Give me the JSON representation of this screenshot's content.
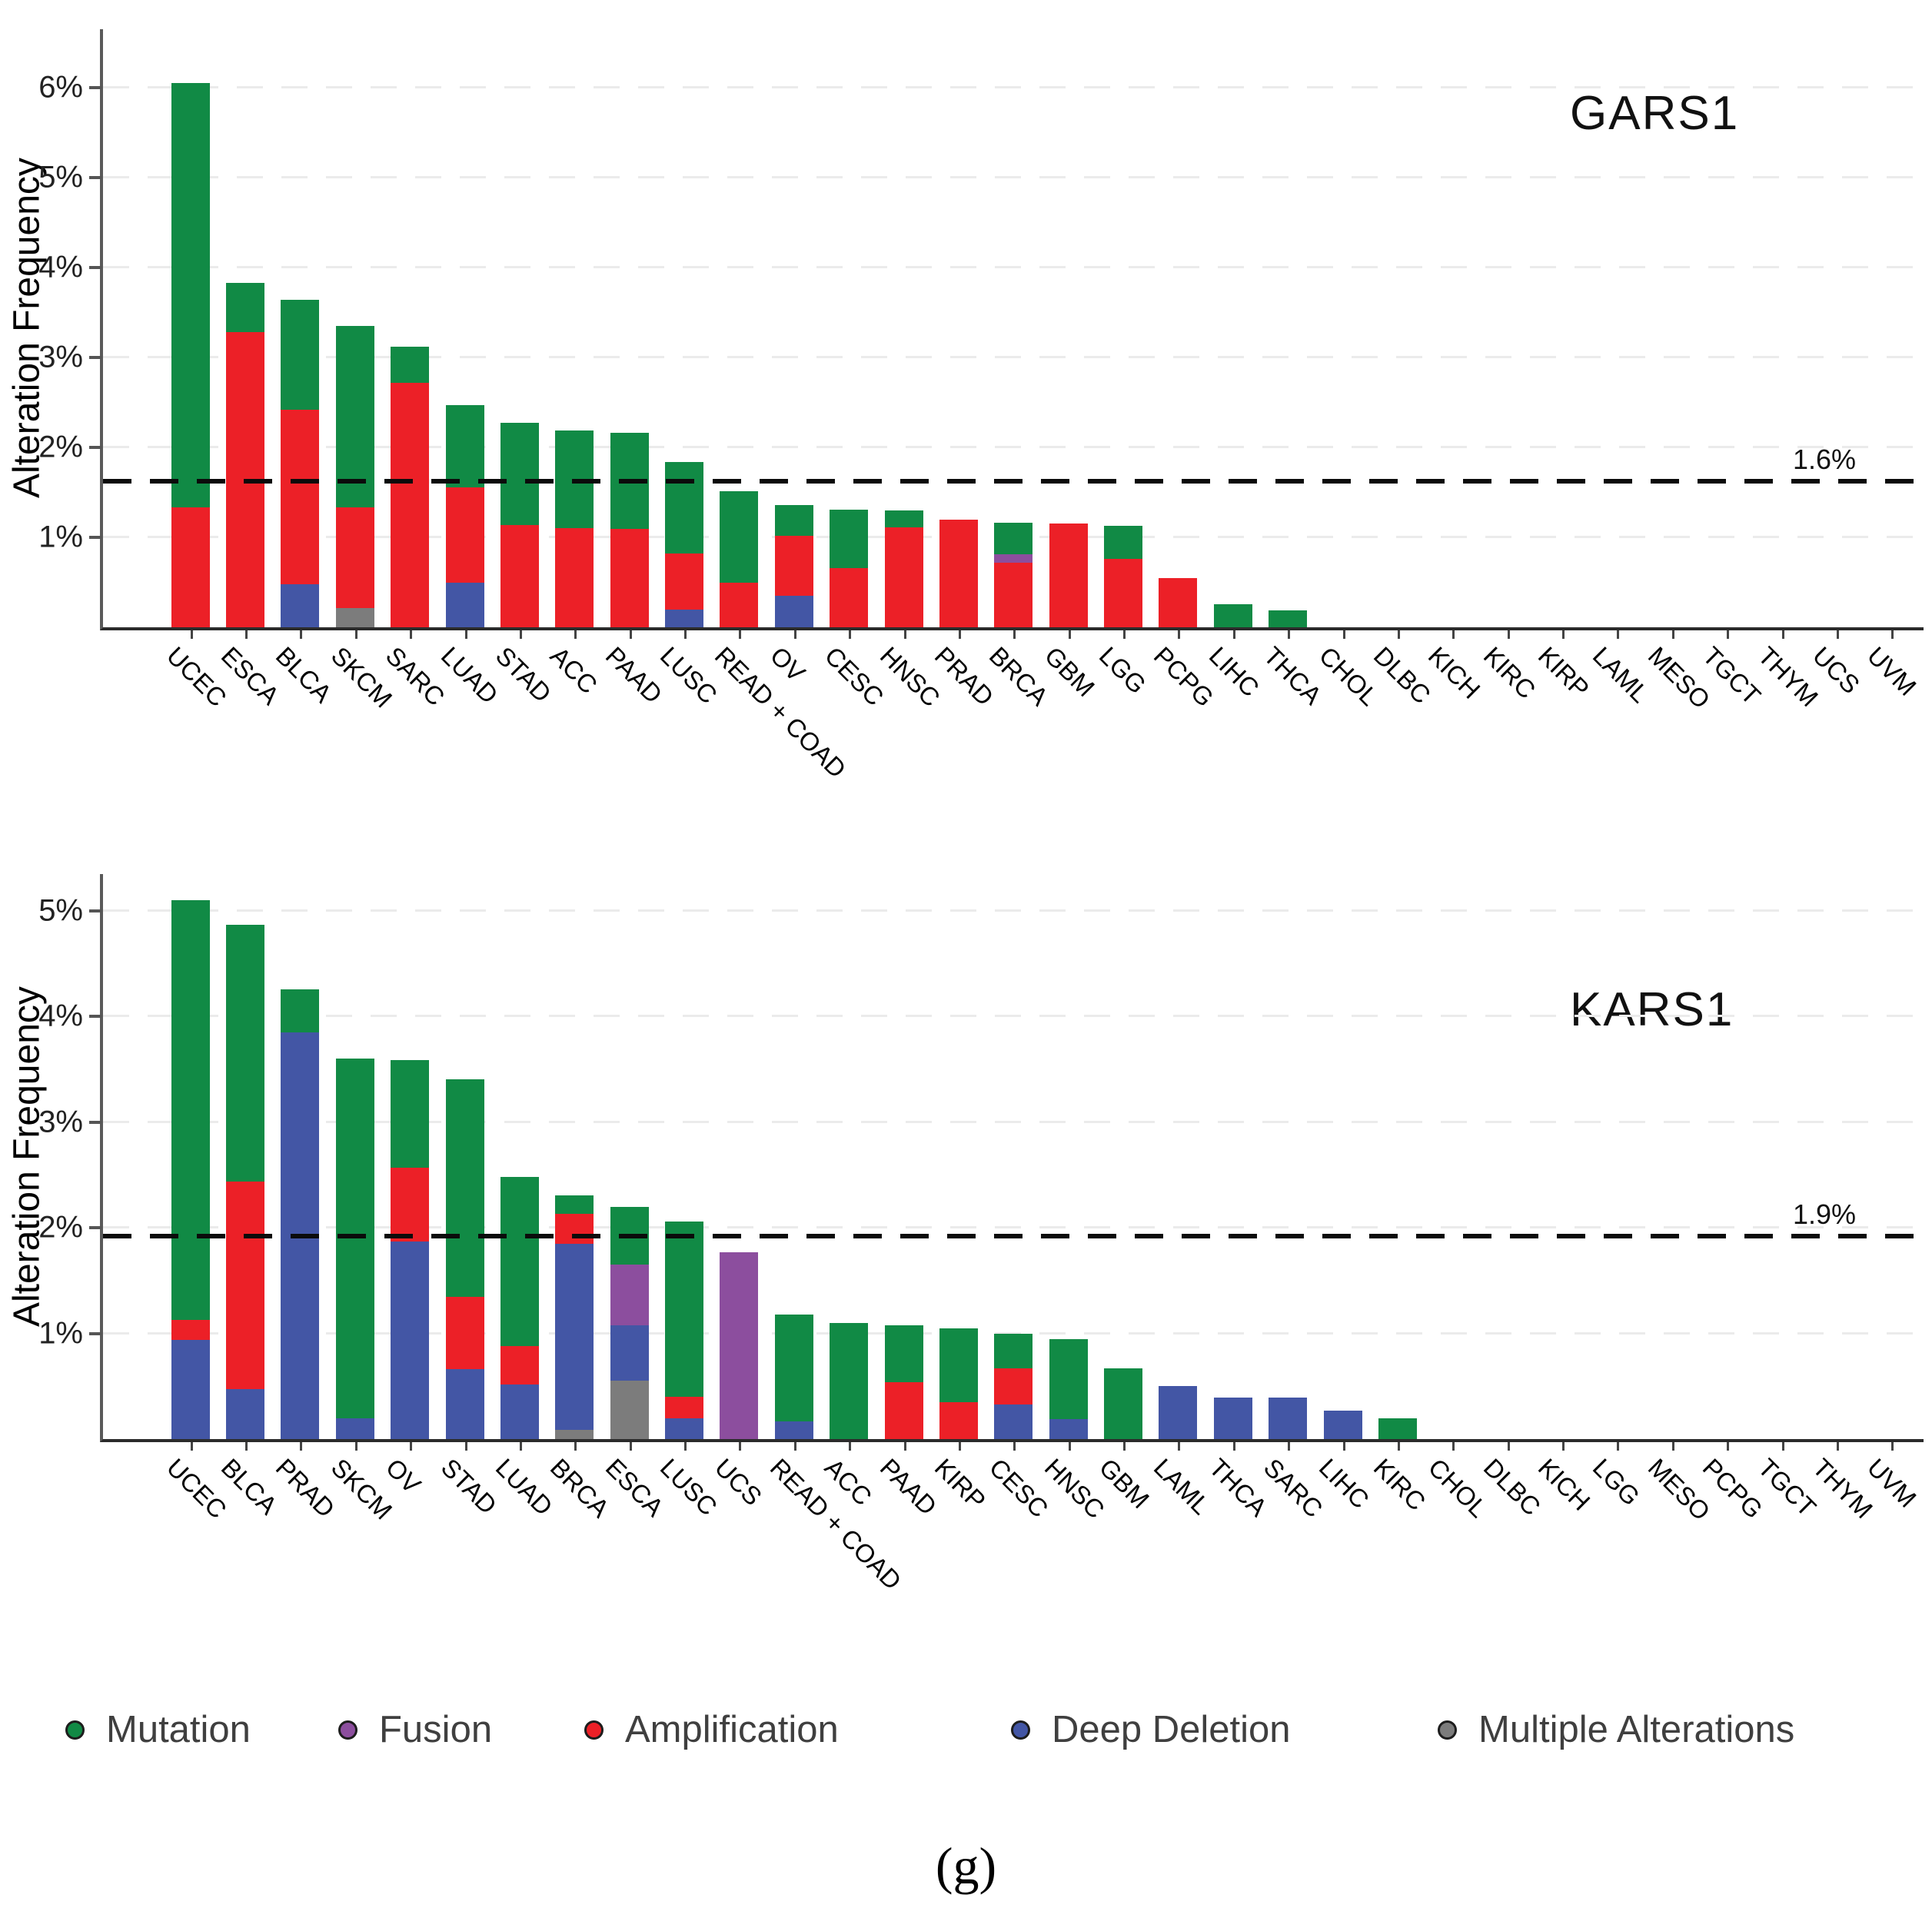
{
  "caption": "(g)",
  "legend": {
    "items": [
      {
        "label": "Mutation",
        "color": "#118A45"
      },
      {
        "label": "Fusion",
        "color": "#8C4E9E"
      },
      {
        "label": "Amplification",
        "color": "#EC2027"
      },
      {
        "label": "Deep Deletion",
        "color": "#4356A5"
      },
      {
        "label": "Multiple Alterations",
        "color": "#7C7C7C"
      }
    ]
  },
  "chart_data": [
    {
      "type": "bar",
      "stacked": true,
      "title": "GARS1",
      "ylabel": "Alteration Frequency",
      "xlabel": "",
      "grid": true,
      "ylim": [
        0,
        6.65
      ],
      "ytick_format": "percent",
      "threshold_value": 1.6,
      "threshold_label": "1.6%",
      "categories": [
        "UCEC",
        "ESCA",
        "BLCA",
        "SKCM",
        "SARC",
        "LUAD",
        "STAD",
        "ACC",
        "PAAD",
        "LUSC",
        "READ + COAD",
        "OV",
        "CESC",
        "HNSC",
        "PRAD",
        "BRCA",
        "GBM",
        "LGG",
        "PCPG",
        "LIHC",
        "THCA",
        "CHOL",
        "DLBC",
        "KICH",
        "KIRC",
        "KIRP",
        "LAML",
        "MESO",
        "TGCT",
        "THYM",
        "UCS",
        "UVM"
      ],
      "series": [
        {
          "name": "Mutation",
          "values": [
            4.72,
            0.55,
            1.22,
            2.02,
            0.4,
            0.91,
            1.13,
            1.09,
            1.07,
            1.02,
            1.01,
            0.34,
            0.65,
            0.19,
            0,
            0.35,
            0,
            0.37,
            0,
            0.26,
            0.19,
            0,
            0,
            0,
            0,
            0,
            0,
            0,
            0,
            0,
            0,
            0
          ]
        },
        {
          "name": "Fusion",
          "values": [
            0,
            0,
            0,
            0,
            0,
            0,
            0,
            0,
            0,
            0,
            0,
            0,
            0,
            0,
            0,
            0.09,
            0,
            0,
            0,
            0,
            0,
            0,
            0,
            0,
            0,
            0,
            0,
            0,
            0,
            0,
            0,
            0
          ]
        },
        {
          "name": "Amplification",
          "values": [
            1.33,
            3.28,
            1.94,
            1.12,
            2.72,
            1.06,
            1.14,
            1.1,
            1.09,
            0.62,
            0.5,
            0.67,
            0.66,
            1.11,
            1.2,
            0.72,
            1.15,
            0.76,
            0.55,
            0,
            0,
            0,
            0,
            0,
            0,
            0,
            0,
            0,
            0,
            0,
            0,
            0
          ]
        },
        {
          "name": "Deep Deletion",
          "values": [
            0,
            0,
            0.48,
            0,
            0,
            0.5,
            0,
            0,
            0,
            0.2,
            0,
            0.35,
            0,
            0,
            0,
            0,
            0,
            0,
            0,
            0,
            0,
            0,
            0,
            0,
            0,
            0,
            0,
            0,
            0,
            0,
            0,
            0
          ]
        },
        {
          "name": "Multiple Alterations",
          "values": [
            0,
            0,
            0,
            0.21,
            0,
            0,
            0,
            0,
            0,
            0,
            0,
            0,
            0,
            0,
            0,
            0,
            0,
            0,
            0,
            0,
            0,
            0,
            0,
            0,
            0,
            0,
            0,
            0,
            0,
            0,
            0,
            0
          ]
        }
      ]
    },
    {
      "type": "bar",
      "stacked": true,
      "title": "KARS1",
      "ylabel": "Alteration Frequency",
      "xlabel": "",
      "grid": true,
      "ylim": [
        0,
        5.35
      ],
      "ytick_format": "percent",
      "threshold_value": 1.9,
      "threshold_label": "1.9%",
      "categories": [
        "UCEC",
        "BLCA",
        "PRAD",
        "SKCM",
        "OV",
        "STAD",
        "LUAD",
        "BRCA",
        "ESCA",
        "LUSC",
        "UCS",
        "READ + COAD",
        "ACC",
        "PAAD",
        "KIRP",
        "CESC",
        "HNSC",
        "GBM",
        "LAML",
        "THCA",
        "SARC",
        "LIHC",
        "KIRC",
        "CHOL",
        "DLBC",
        "KICH",
        "LGG",
        "MESO",
        "PCPG",
        "TGCT",
        "THYM",
        "UVM"
      ],
      "series": [
        {
          "name": "Mutation",
          "values": [
            3.97,
            2.43,
            0.41,
            3.4,
            1.02,
            2.06,
            1.6,
            0.18,
            0.55,
            1.66,
            0,
            1.01,
            1.1,
            0.54,
            0.7,
            0.33,
            0.76,
            0.67,
            0,
            0,
            0,
            0,
            0.2,
            0,
            0,
            0,
            0,
            0,
            0,
            0,
            0,
            0
          ]
        },
        {
          "name": "Fusion",
          "values": [
            0,
            0,
            0,
            0,
            0,
            0,
            0,
            0,
            0.57,
            0,
            1.77,
            0,
            0,
            0,
            0,
            0,
            0,
            0,
            0,
            0,
            0,
            0,
            0,
            0,
            0,
            0,
            0,
            0,
            0,
            0,
            0,
            0
          ]
        },
        {
          "name": "Amplification",
          "values": [
            0.19,
            1.97,
            0,
            0,
            0.7,
            0.69,
            0.36,
            0.28,
            0,
            0.2,
            0,
            0,
            0,
            0.54,
            0.35,
            0.34,
            0,
            0,
            0,
            0,
            0,
            0,
            0,
            0,
            0,
            0,
            0,
            0,
            0,
            0,
            0,
            0
          ]
        },
        {
          "name": "Deep Deletion",
          "values": [
            0.94,
            0.47,
            3.85,
            0.2,
            1.87,
            0.66,
            0.52,
            1.76,
            0.53,
            0.2,
            0,
            0.17,
            0,
            0,
            0,
            0.33,
            0.19,
            0,
            0.5,
            0.39,
            0.39,
            0.27,
            0,
            0,
            0,
            0,
            0,
            0,
            0,
            0,
            0,
            0
          ]
        },
        {
          "name": "Multiple Alterations",
          "values": [
            0,
            0,
            0,
            0,
            0,
            0,
            0,
            0.09,
            0.55,
            0,
            0,
            0,
            0,
            0,
            0,
            0,
            0,
            0,
            0,
            0,
            0,
            0,
            0,
            0,
            0,
            0,
            0,
            0,
            0,
            0,
            0,
            0
          ]
        }
      ]
    }
  ]
}
